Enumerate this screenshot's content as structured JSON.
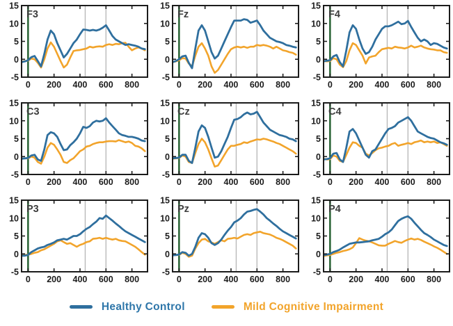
{
  "legend": {
    "items": [
      {
        "label": "Healthy Control",
        "color_key": "hc"
      },
      {
        "label": "Mild Cognitive Impairment",
        "color_key": "mci"
      }
    ]
  },
  "chart_data": {
    "type": "line",
    "title": "",
    "xlabel": "",
    "ylabel": "",
    "grid_layout": {
      "rows": 3,
      "cols": 3
    },
    "x_unit_note": "time samples, ticks in ms",
    "x_start": -50,
    "x_step": 25,
    "xlim": [
      -50,
      920
    ],
    "ylim": [
      -5,
      15
    ],
    "x_ticks": [
      0,
      200,
      400,
      600,
      800
    ],
    "y_ticks": [
      -5,
      0,
      5,
      10,
      15
    ],
    "event_line_x": 0,
    "gridline_xs": [
      440,
      600
    ],
    "series_names": [
      "Healthy Control",
      "Mild Cognitive Impairment"
    ],
    "colors": {
      "hc": "#2f6f9e",
      "mci": "#f2a42b",
      "event_line": "#1e5c2b",
      "gridline": "#b5b5b5",
      "axis": "#1b1b1b",
      "tick_label": "#1c1c1c",
      "panel_label": "#3d3d3d"
    },
    "panels": [
      {
        "label": "F3",
        "series": {
          "hc": [
            -0.8,
            -0.6,
            -0.3,
            0.6,
            0.9,
            -0.5,
            -2.0,
            1.5,
            5.5,
            8.0,
            7.0,
            4.5,
            2.5,
            0.5,
            1.5,
            3.0,
            4.5,
            5.5,
            7.0,
            8.3,
            8.2,
            8.0,
            8.2,
            8.0,
            8.3,
            8.8,
            9.5,
            8.0,
            6.5,
            5.5,
            5.0,
            4.5,
            4.0,
            4.2,
            4.0,
            3.8,
            3.5,
            3.0,
            2.8
          ],
          "mci": [
            -0.7,
            -0.5,
            -0.4,
            0.2,
            0.0,
            -1.0,
            -2.3,
            0.0,
            3.0,
            4.7,
            3.5,
            1.5,
            -0.5,
            -2.3,
            -1.5,
            0.5,
            2.3,
            2.5,
            2.6,
            2.8,
            3.0,
            3.5,
            3.3,
            3.5,
            3.6,
            3.5,
            4.0,
            4.2,
            4.0,
            4.3,
            4.2,
            4.5,
            4.6,
            3.5,
            2.5,
            3.0,
            3.3,
            3.0,
            2.5
          ]
        }
      },
      {
        "label": "Fz",
        "series": {
          "hc": [
            -0.8,
            -0.5,
            0.0,
            0.8,
            1.0,
            -1.0,
            -2.5,
            3.0,
            8.0,
            9.5,
            8.0,
            5.0,
            2.0,
            0.2,
            1.0,
            3.0,
            5.0,
            7.0,
            9.0,
            10.8,
            10.8,
            10.8,
            11.2,
            11.0,
            10.2,
            10.5,
            10.8,
            9.5,
            8.0,
            7.0,
            6.0,
            5.5,
            5.0,
            4.8,
            4.5,
            4.0,
            3.8,
            3.5,
            3.3
          ],
          "mci": [
            -0.8,
            -0.6,
            -0.3,
            0.3,
            0.2,
            -1.2,
            -2.0,
            1.0,
            3.5,
            4.5,
            3.0,
            1.0,
            -2.0,
            -3.8,
            -3.0,
            -1.5,
            0.0,
            1.5,
            2.8,
            3.3,
            3.5,
            3.3,
            3.5,
            3.2,
            3.5,
            3.5,
            4.0,
            3.8,
            4.0,
            3.8,
            3.5,
            3.0,
            3.5,
            3.0,
            2.5,
            2.3,
            2.0,
            1.8,
            1.3
          ]
        }
      },
      {
        "label": "F4",
        "series": {
          "hc": [
            -0.6,
            -0.4,
            -0.3,
            0.8,
            1.2,
            -0.8,
            -2.0,
            2.5,
            7.5,
            9.5,
            8.5,
            5.5,
            3.0,
            1.5,
            2.0,
            3.5,
            5.5,
            7.0,
            8.5,
            9.2,
            9.2,
            9.5,
            10.0,
            10.5,
            9.8,
            10.0,
            10.7,
            9.0,
            7.5,
            6.0,
            5.0,
            5.5,
            5.0,
            4.0,
            4.5,
            4.3,
            3.8,
            3.3,
            3.0
          ],
          "mci": [
            -0.5,
            -0.6,
            -0.5,
            0.3,
            0.0,
            -1.5,
            -2.2,
            -0.5,
            2.5,
            4.5,
            4.0,
            2.5,
            1.0,
            -1.2,
            0.5,
            0.8,
            1.0,
            2.0,
            2.8,
            3.0,
            3.2,
            3.0,
            3.5,
            3.3,
            3.2,
            3.0,
            3.3,
            3.8,
            3.3,
            3.5,
            3.8,
            3.3,
            3.0,
            2.8,
            2.7,
            2.5,
            2.5,
            2.0,
            1.8
          ]
        }
      },
      {
        "label": "C3",
        "series": {
          "hc": [
            -0.6,
            -0.5,
            -0.4,
            0.3,
            0.5,
            -0.8,
            -1.2,
            2.0,
            6.0,
            6.8,
            6.5,
            5.5,
            3.5,
            1.8,
            2.0,
            3.2,
            4.0,
            5.0,
            6.5,
            8.3,
            8.0,
            8.5,
            9.5,
            10.0,
            9.8,
            10.0,
            10.7,
            9.5,
            8.5,
            7.5,
            6.5,
            6.0,
            5.8,
            5.5,
            5.5,
            5.3,
            5.0,
            4.5,
            4.3
          ],
          "mci": [
            -0.5,
            -0.5,
            -0.5,
            0.0,
            -0.3,
            -1.5,
            -2.0,
            0.0,
            2.5,
            3.8,
            3.3,
            2.0,
            0.5,
            -1.5,
            -1.8,
            -1.0,
            -0.5,
            0.5,
            1.5,
            2.0,
            2.8,
            3.0,
            3.5,
            3.8,
            4.0,
            4.0,
            4.2,
            4.3,
            4.3,
            4.2,
            4.6,
            4.3,
            4.0,
            4.2,
            3.8,
            3.0,
            2.8,
            2.3,
            1.5
          ]
        }
      },
      {
        "label": "Cz",
        "series": {
          "hc": [
            -0.5,
            -0.4,
            -0.3,
            0.5,
            0.5,
            -1.2,
            -1.8,
            2.5,
            7.0,
            8.7,
            8.0,
            5.5,
            2.5,
            -0.3,
            0.0,
            1.5,
            3.5,
            5.5,
            8.0,
            10.3,
            10.5,
            11.0,
            11.8,
            12.3,
            11.8,
            12.0,
            12.5,
            11.0,
            9.5,
            8.5,
            7.5,
            7.0,
            6.5,
            6.0,
            5.8,
            5.5,
            5.0,
            4.8,
            4.3
          ],
          "mci": [
            -0.6,
            -0.5,
            -0.4,
            0.3,
            0.0,
            -1.5,
            -1.8,
            1.0,
            3.5,
            5.0,
            4.0,
            2.0,
            -0.5,
            -2.8,
            -2.5,
            -1.0,
            0.5,
            2.0,
            3.0,
            3.0,
            3.3,
            3.5,
            4.0,
            3.8,
            4.2,
            4.5,
            4.8,
            4.7,
            5.0,
            4.8,
            4.5,
            4.2,
            3.8,
            3.5,
            3.0,
            2.5,
            2.0,
            1.5,
            0.8
          ]
        }
      },
      {
        "label": "C4",
        "series": {
          "hc": [
            -0.8,
            -0.7,
            -0.5,
            0.8,
            1.0,
            -0.8,
            -1.5,
            2.5,
            7.0,
            7.7,
            6.5,
            4.5,
            2.5,
            0.5,
            -0.3,
            1.5,
            2.0,
            3.5,
            5.0,
            6.5,
            7.7,
            8.0,
            8.5,
            9.5,
            10.0,
            10.5,
            11.0,
            10.0,
            8.5,
            7.0,
            6.5,
            6.0,
            5.5,
            5.2,
            5.0,
            4.5,
            4.0,
            3.7,
            3.3
          ],
          "mci": [
            -0.6,
            -0.8,
            -0.7,
            0.3,
            0.0,
            -1.2,
            -1.5,
            0.5,
            2.5,
            4.0,
            3.8,
            3.0,
            2.5,
            0.8,
            0.3,
            1.0,
            1.8,
            2.3,
            2.5,
            2.8,
            3.0,
            3.5,
            3.8,
            3.0,
            3.3,
            3.5,
            3.8,
            3.5,
            4.0,
            4.2,
            4.5,
            4.0,
            4.2,
            4.0,
            4.2,
            3.8,
            4.0,
            3.5,
            3.0
          ]
        }
      },
      {
        "label": "P3",
        "series": {
          "hc": [
            -0.5,
            -0.5,
            -0.3,
            0.5,
            1.0,
            1.5,
            1.8,
            2.0,
            2.5,
            2.8,
            3.2,
            3.8,
            4.0,
            4.2,
            4.0,
            4.5,
            5.0,
            5.0,
            5.5,
            6.3,
            7.0,
            7.5,
            8.3,
            9.0,
            10.0,
            9.8,
            10.7,
            10.0,
            9.3,
            8.5,
            7.8,
            7.0,
            6.3,
            5.8,
            5.3,
            4.8,
            4.3,
            3.8,
            3.3
          ],
          "mci": [
            -0.4,
            -0.3,
            -0.2,
            0.0,
            0.3,
            0.5,
            1.0,
            1.3,
            1.8,
            2.3,
            2.8,
            3.5,
            3.8,
            3.3,
            2.8,
            3.0,
            2.5,
            2.0,
            2.5,
            2.8,
            3.3,
            3.5,
            4.2,
            4.3,
            4.5,
            4.2,
            4.5,
            4.2,
            4.0,
            4.2,
            3.8,
            3.6,
            3.5,
            3.0,
            2.5,
            2.0,
            1.3,
            0.5,
            -0.2
          ]
        }
      },
      {
        "label": "Pz",
        "series": {
          "hc": [
            -0.4,
            -0.3,
            -0.2,
            0.5,
            0.3,
            -0.5,
            0.0,
            2.0,
            4.5,
            5.8,
            5.5,
            4.5,
            3.0,
            2.5,
            3.0,
            4.0,
            5.3,
            6.5,
            7.5,
            8.8,
            9.3,
            10.0,
            11.0,
            11.8,
            12.0,
            12.3,
            12.5,
            11.8,
            11.0,
            10.0,
            9.3,
            8.5,
            7.8,
            7.0,
            6.3,
            5.8,
            5.3,
            4.8,
            4.3
          ],
          "mci": [
            -0.4,
            -0.3,
            -0.3,
            0.3,
            0.0,
            -0.8,
            -0.5,
            1.5,
            3.0,
            4.0,
            4.2,
            3.5,
            3.2,
            2.8,
            3.3,
            3.8,
            3.5,
            4.2,
            4.3,
            4.5,
            4.3,
            4.8,
            5.3,
            5.5,
            5.3,
            5.8,
            6.0,
            6.2,
            5.8,
            5.6,
            5.4,
            5.0,
            4.5,
            4.2,
            3.8,
            3.3,
            2.8,
            2.3,
            1.5
          ]
        }
      },
      {
        "label": "P4",
        "series": {
          "hc": [
            -0.3,
            -0.2,
            0.0,
            0.5,
            0.8,
            1.2,
            1.8,
            2.3,
            2.8,
            3.0,
            3.2,
            3.2,
            3.3,
            3.4,
            3.5,
            3.8,
            4.0,
            4.2,
            4.8,
            5.5,
            6.0,
            6.8,
            8.0,
            9.2,
            9.8,
            10.2,
            10.5,
            9.8,
            8.7,
            7.7,
            6.7,
            5.8,
            5.3,
            4.7,
            4.0,
            3.5,
            3.0,
            2.5,
            2.2
          ],
          "mci": [
            -0.6,
            -0.4,
            -0.3,
            0.0,
            0.3,
            0.5,
            0.8,
            1.0,
            1.3,
            1.8,
            3.0,
            4.4,
            4.0,
            3.7,
            3.5,
            3.2,
            2.8,
            2.4,
            2.3,
            2.3,
            2.8,
            3.2,
            3.6,
            3.3,
            3.1,
            3.6,
            4.0,
            4.3,
            4.0,
            4.2,
            3.9,
            3.4,
            3.0,
            2.6,
            2.1,
            1.7,
            1.2,
            0.6,
            0.0
          ]
        }
      }
    ]
  }
}
